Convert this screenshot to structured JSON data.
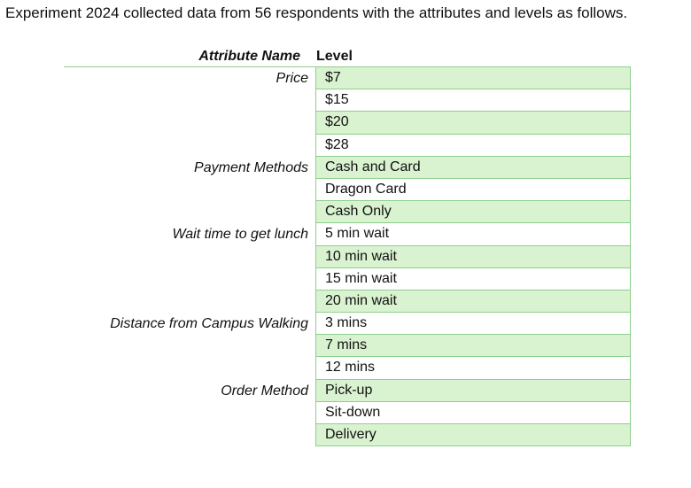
{
  "intro": "Experiment 2024 collected data from 56 respondents with the attributes and levels as follows.",
  "table": {
    "header_attribute": "Attribute Name",
    "header_level": "Level",
    "rows": [
      {
        "attribute": "Price",
        "level": "$7"
      },
      {
        "attribute": "",
        "level": "$15"
      },
      {
        "attribute": "",
        "level": "$20"
      },
      {
        "attribute": "",
        "level": "$28"
      },
      {
        "attribute": "Payment Methods",
        "level": "Cash and Card"
      },
      {
        "attribute": "",
        "level": "Dragon Card"
      },
      {
        "attribute": "",
        "level": "Cash Only"
      },
      {
        "attribute": "Wait time to get lunch",
        "level": "5 min wait"
      },
      {
        "attribute": "",
        "level": "10 min wait"
      },
      {
        "attribute": "",
        "level": "15 min wait"
      },
      {
        "attribute": "",
        "level": "20 min wait"
      },
      {
        "attribute": "Distance from Campus Walking",
        "level": "3 mins"
      },
      {
        "attribute": "",
        "level": "7 mins"
      },
      {
        "attribute": "",
        "level": "12 mins"
      },
      {
        "attribute": "Order Method",
        "level": "Pick-up"
      },
      {
        "attribute": "",
        "level": "Sit-down"
      },
      {
        "attribute": "",
        "level": "Delivery"
      }
    ]
  },
  "colors": {
    "shaded_row": "#d9f2d0",
    "border": "#8fce8f"
  }
}
